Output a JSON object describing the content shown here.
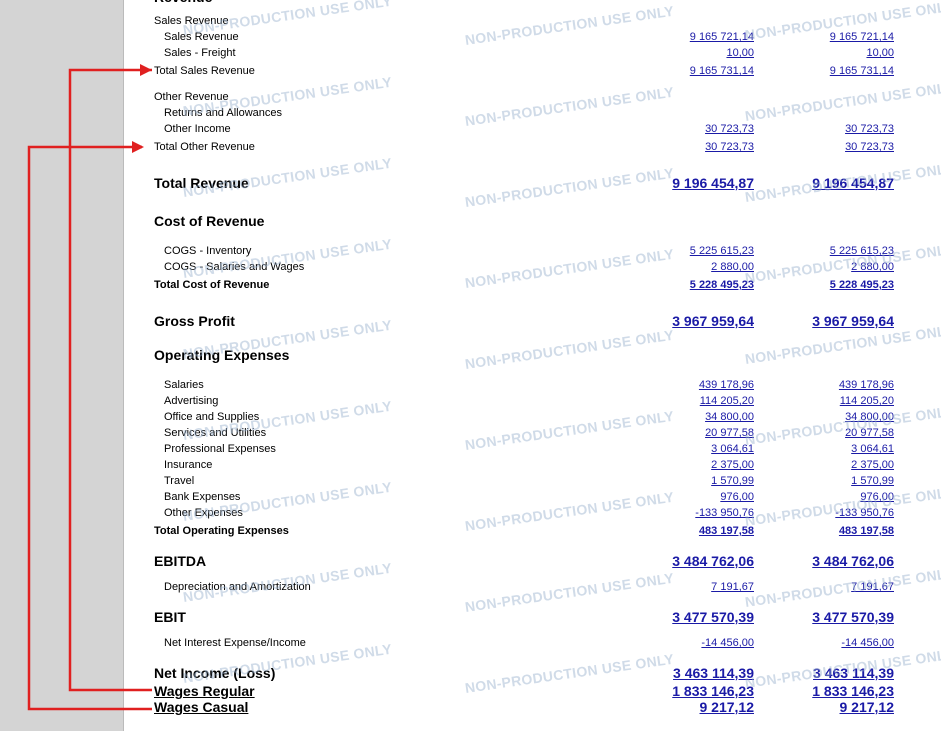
{
  "report": {
    "watermark": "NON-PRODUCTION USE ONLY",
    "rows": [
      {
        "label": "Revenue"
      },
      {
        "label": "Sales Revenue"
      },
      {
        "label": "Sales Revenue",
        "amounts": [
          "9 165 721,14",
          "9 165 721,14"
        ]
      },
      {
        "label": "Sales - Freight",
        "amounts": [
          "10,00",
          "10,00"
        ]
      },
      {
        "label": "Total Sales Revenue",
        "amounts": [
          "9 165 731,14",
          "9 165 731,14"
        ]
      },
      {
        "label": "Other Revenue"
      },
      {
        "label": "Returns and Allowances"
      },
      {
        "label": "Other Income",
        "amounts": [
          "30 723,73",
          "30 723,73"
        ]
      },
      {
        "label": "Total Other Revenue",
        "amounts": [
          "30 723,73",
          "30 723,73"
        ]
      },
      {
        "label": "Total Revenue",
        "amounts": [
          "9 196 454,87",
          "9 196 454,87"
        ]
      },
      {
        "label": "Cost of Revenue"
      },
      {
        "label": "COGS - Inventory",
        "amounts": [
          "5 225 615,23",
          "5 225 615,23"
        ]
      },
      {
        "label": "COGS - Salaries and Wages",
        "amounts": [
          "2 880,00",
          "2 880,00"
        ]
      },
      {
        "label": "Total Cost of Revenue",
        "amounts": [
          "5 228 495,23",
          "5 228 495,23"
        ]
      },
      {
        "label": "Gross Profit",
        "amounts": [
          "3 967 959,64",
          "3 967 959,64"
        ]
      },
      {
        "label": "Operating Expenses"
      },
      {
        "label": "Salaries",
        "amounts": [
          "439 178,96",
          "439 178,96"
        ]
      },
      {
        "label": "Advertising",
        "amounts": [
          "114 205,20",
          "114 205,20"
        ]
      },
      {
        "label": "Office and Supplies",
        "amounts": [
          "34 800,00",
          "34 800,00"
        ]
      },
      {
        "label": "Services and Utilities",
        "amounts": [
          "20 977,58",
          "20 977,58"
        ]
      },
      {
        "label": "Professional Expenses",
        "amounts": [
          "3 064,61",
          "3 064,61"
        ]
      },
      {
        "label": "Insurance",
        "amounts": [
          "2 375,00",
          "2 375,00"
        ]
      },
      {
        "label": "Travel",
        "amounts": [
          "1 570,99",
          "1 570,99"
        ]
      },
      {
        "label": "Bank Expenses",
        "amounts": [
          "976,00",
          "976,00"
        ]
      },
      {
        "label": "Other Expenses",
        "amounts": [
          "-133 950,76",
          "-133 950,76"
        ]
      },
      {
        "label": "Total Operating Expenses",
        "amounts": [
          "483 197,58",
          "483 197,58"
        ]
      },
      {
        "label": "EBITDA",
        "amounts": [
          "3 484 762,06",
          "3 484 762,06"
        ]
      },
      {
        "label": "Depreciation and Amortization",
        "amounts": [
          "7 191,67",
          "7 191,67"
        ]
      },
      {
        "label": "EBIT",
        "amounts": [
          "3 477 570,39",
          "3 477 570,39"
        ]
      },
      {
        "label": "Net Interest Expense/Income",
        "amounts": [
          "-14 456,00",
          "-14 456,00"
        ]
      },
      {
        "label": "Net Income (Loss)",
        "amounts": [
          "3 463 114,39",
          "3 463 114,39"
        ]
      },
      {
        "label": "Wages Regular",
        "amounts": [
          "1 833 146,23",
          "1 833 146,23"
        ]
      },
      {
        "label": "Wages Casual",
        "amounts": [
          "9 217,12",
          "9 217,12"
        ]
      }
    ]
  }
}
